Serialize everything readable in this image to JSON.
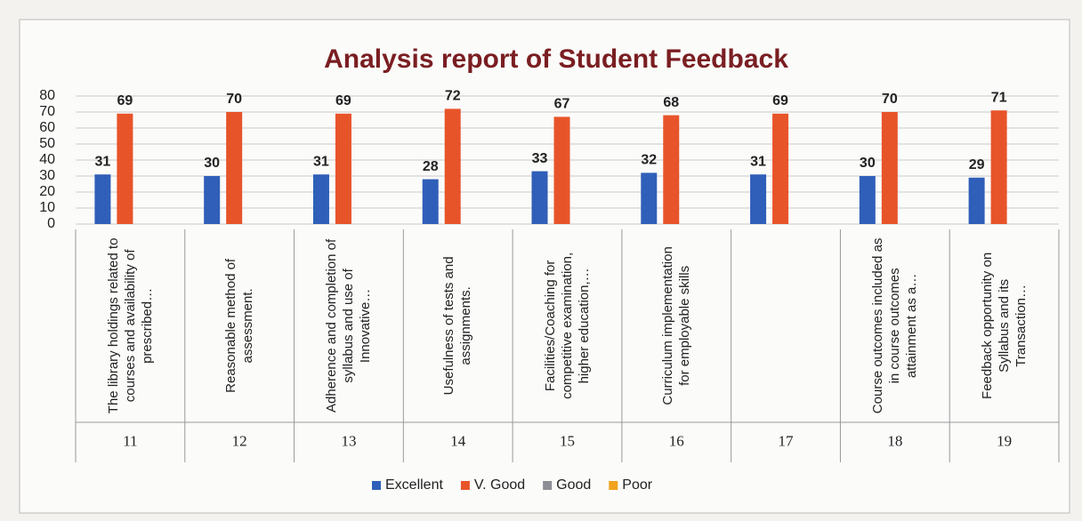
{
  "chart_data": {
    "type": "bar",
    "title": "Analysis report of Student Feedback",
    "categories": [
      "The library holdings related to courses and availability of prescribed…",
      "Reasonable method of assessment.",
      "Adherence and completion of syllabus and use of Innovative…",
      "Usefulness of tests and assignments.",
      "Facilities/Coaching for competitive examination, higher education,…",
      "Curriculum implementation for employable skills",
      null,
      "Course outcomes included as in course outcomes attainment as a…",
      "Feedback opportunity on Syllabus and its Transaction…"
    ],
    "groups": [
      "11",
      "12",
      "13",
      "14",
      "15",
      "16",
      "17",
      "18",
      "19"
    ],
    "series": [
      {
        "name": "Excellent",
        "color": "#2f5fb8",
        "values": [
          31,
          30,
          31,
          28,
          33,
          32,
          31,
          30,
          29
        ]
      },
      {
        "name": "V. Good",
        "color": "#e8542a",
        "values": [
          69,
          70,
          69,
          72,
          67,
          68,
          69,
          70,
          71
        ]
      },
      {
        "name": "Good",
        "color": "#8d8d95",
        "values": [
          null,
          null,
          null,
          null,
          null,
          null,
          null,
          null,
          null
        ]
      },
      {
        "name": "Poor",
        "color": "#f0a21e",
        "values": [
          null,
          null,
          null,
          null,
          null,
          null,
          null,
          null,
          null
        ]
      }
    ],
    "ylim": [
      0,
      80
    ],
    "yticks": [
      0,
      10,
      20,
      30,
      40,
      50,
      60,
      70,
      80
    ],
    "grid": true,
    "legend": "bottom"
  }
}
